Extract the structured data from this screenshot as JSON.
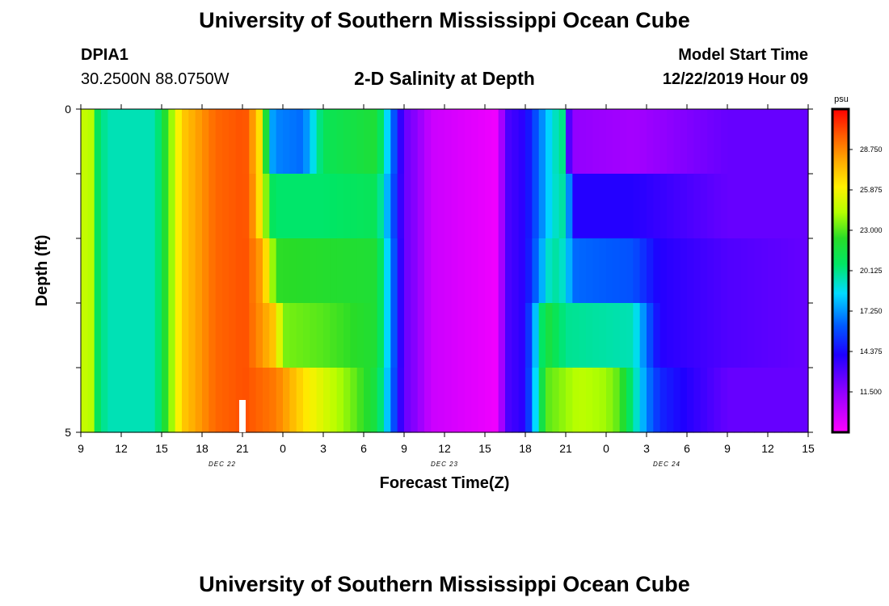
{
  "header": {
    "title": "University of Southern Mississippi Ocean Cube",
    "station_id": "DPIA1",
    "coords": "30.2500N 88.0750W",
    "chart_title": "2-D Salinity at Depth",
    "model_label": "Model Start Time",
    "model_time": "12/22/2019 Hour 09"
  },
  "footer": {
    "title": "University of Southern Mississippi Ocean Cube"
  },
  "chart_data": {
    "type": "heatmap",
    "title": "2-D Salinity at Depth",
    "xlabel": "Forecast Time(Z)",
    "ylabel": "Depth (ft)",
    "x_tick_labels": [
      "9",
      "12",
      "15",
      "18",
      "21",
      "0",
      "3",
      "6",
      "9",
      "12",
      "15",
      "18",
      "21",
      "0",
      "3",
      "6",
      "9",
      "12",
      "15"
    ],
    "date_labels": [
      "DEC 22",
      "DEC 23",
      "DEC 24"
    ],
    "y_tick_labels": [
      "0",
      "5"
    ],
    "ylim": [
      0,
      5
    ],
    "units": "psu",
    "colorbar": {
      "unit_label": "psu",
      "range": [
        8.625,
        31.625
      ],
      "tick_values": [
        "28.750",
        "25.875",
        "23.000",
        "20.125",
        "17.250",
        "14.375",
        "11.500"
      ]
    },
    "current_time_marker_hours": 12,
    "depth_layers": 5,
    "x_hours_start": 0,
    "x_hours_end": 54,
    "series": [
      {
        "name": "layer-1",
        "keys": [
          [
            0,
            24
          ],
          [
            0.6,
            25.5
          ],
          [
            1.2,
            21
          ],
          [
            2,
            19.5
          ],
          [
            5.5,
            19.5
          ],
          [
            6.5,
            23
          ],
          [
            7.5,
            27
          ],
          [
            10,
            29.5
          ],
          [
            12.2,
            30
          ],
          [
            13.2,
            27
          ],
          [
            14.3,
            17
          ],
          [
            16.5,
            16.5
          ],
          [
            18,
            21
          ],
          [
            22,
            22
          ],
          [
            24,
            12.5
          ],
          [
            25,
            11.5
          ],
          [
            26,
            10
          ],
          [
            31,
            9
          ],
          [
            31.5,
            13
          ],
          [
            33,
            14
          ],
          [
            35,
            19
          ],
          [
            36,
            20.5
          ],
          [
            36.3,
            11.5
          ],
          [
            41,
            11
          ],
          [
            48,
            12.5
          ],
          [
            54,
            12.5
          ]
        ]
      },
      {
        "name": "layer-2",
        "keys": [
          [
            0,
            24
          ],
          [
            0.6,
            25.5
          ],
          [
            1.2,
            21
          ],
          [
            2,
            19.5
          ],
          [
            5.5,
            19.5
          ],
          [
            6.5,
            23
          ],
          [
            7.5,
            27
          ],
          [
            10,
            29.5
          ],
          [
            12.2,
            30
          ],
          [
            13,
            28
          ],
          [
            14.3,
            20.5
          ],
          [
            18,
            20.5
          ],
          [
            22,
            21
          ],
          [
            24,
            12.5
          ],
          [
            25,
            11.5
          ],
          [
            26,
            10
          ],
          [
            31,
            9
          ],
          [
            31.5,
            13
          ],
          [
            33,
            14
          ],
          [
            35,
            19
          ],
          [
            36,
            20
          ],
          [
            36.5,
            14
          ],
          [
            41,
            14
          ],
          [
            48,
            12.5
          ],
          [
            54,
            12.5
          ]
        ]
      },
      {
        "name": "layer-3",
        "keys": [
          [
            0,
            24
          ],
          [
            0.6,
            25.5
          ],
          [
            1.2,
            21
          ],
          [
            2,
            19.5
          ],
          [
            5.5,
            19.5
          ],
          [
            6.5,
            23
          ],
          [
            7.5,
            27
          ],
          [
            10,
            29.5
          ],
          [
            12.2,
            30
          ],
          [
            13.5,
            28
          ],
          [
            14.5,
            22.5
          ],
          [
            22,
            22
          ],
          [
            24,
            12.5
          ],
          [
            25,
            11.5
          ],
          [
            26,
            10
          ],
          [
            31,
            9
          ],
          [
            31.5,
            13
          ],
          [
            33,
            14
          ],
          [
            35,
            20
          ],
          [
            36,
            19
          ],
          [
            36.5,
            16.5
          ],
          [
            41,
            16
          ],
          [
            43,
            14
          ],
          [
            48,
            13
          ],
          [
            54,
            12.5
          ]
        ]
      },
      {
        "name": "layer-4",
        "keys": [
          [
            0,
            24
          ],
          [
            0.6,
            25.5
          ],
          [
            1.2,
            21
          ],
          [
            2,
            19.5
          ],
          [
            5.5,
            19.5
          ],
          [
            6.5,
            23
          ],
          [
            7.5,
            27
          ],
          [
            10,
            29.5
          ],
          [
            12.2,
            30
          ],
          [
            14.5,
            27
          ],
          [
            15,
            23.5
          ],
          [
            18,
            23
          ],
          [
            22,
            22
          ],
          [
            24,
            12.5
          ],
          [
            25,
            11.5
          ],
          [
            26,
            10
          ],
          [
            31,
            9
          ],
          [
            31.5,
            13
          ],
          [
            33,
            14
          ],
          [
            34.5,
            22
          ],
          [
            36,
            20
          ],
          [
            41,
            19.5
          ],
          [
            42,
            16.5
          ],
          [
            43,
            14
          ],
          [
            48,
            13
          ],
          [
            54,
            12.5
          ]
        ]
      },
      {
        "name": "layer-5",
        "keys": [
          [
            0,
            24
          ],
          [
            0.6,
            25.5
          ],
          [
            1.2,
            21
          ],
          [
            2,
            19.5
          ],
          [
            5.5,
            19.5
          ],
          [
            6.5,
            23
          ],
          [
            7.5,
            27
          ],
          [
            10,
            29.5
          ],
          [
            12.2,
            30
          ],
          [
            14.5,
            29
          ],
          [
            17,
            26
          ],
          [
            20,
            23.5
          ],
          [
            22,
            21.5
          ],
          [
            24,
            12.5
          ],
          [
            25,
            11.5
          ],
          [
            26,
            10
          ],
          [
            31,
            9
          ],
          [
            31.5,
            13
          ],
          [
            33,
            14
          ],
          [
            34.5,
            23
          ],
          [
            37,
            24.5
          ],
          [
            39,
            24
          ],
          [
            40,
            23
          ],
          [
            41,
            20
          ],
          [
            42,
            17
          ],
          [
            43,
            15
          ],
          [
            48,
            12.5
          ],
          [
            54,
            12.5
          ]
        ]
      }
    ]
  }
}
